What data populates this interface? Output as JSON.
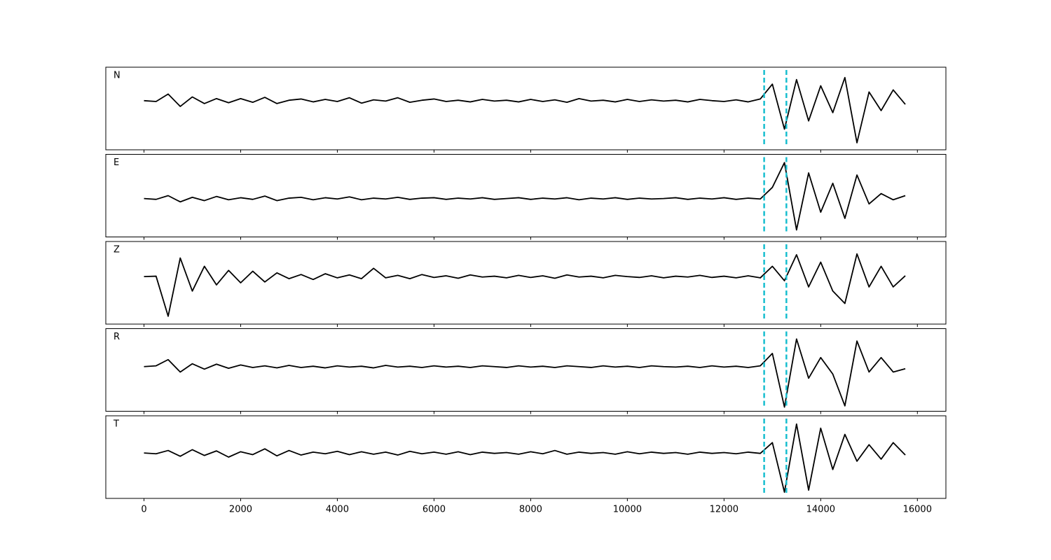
{
  "chart_data": [
    {
      "type": "line",
      "title": "N",
      "color": "#000000",
      "x": [
        0,
        250,
        500,
        750,
        1000,
        1250,
        1500,
        1750,
        2000,
        2250,
        2500,
        2750,
        3000,
        3250,
        3500,
        3750,
        4000,
        4250,
        4500,
        4750,
        5000,
        5250,
        5500,
        5750,
        6000,
        6250,
        6500,
        6750,
        7000,
        7250,
        7500,
        7750,
        8000,
        8250,
        8500,
        8750,
        9000,
        9250,
        9500,
        9750,
        10000,
        10250,
        10500,
        10750,
        11000,
        11250,
        11500,
        11750,
        12000,
        12250,
        12500,
        12750,
        13000,
        13250,
        13500,
        13750,
        14000,
        14250,
        14500,
        14750,
        15000,
        15250,
        15500,
        15750
      ],
      "values": [
        0.19,
        0.17,
        0.35,
        0.05,
        0.28,
        0.12,
        0.24,
        0.14,
        0.24,
        0.15,
        0.27,
        0.12,
        0.2,
        0.23,
        0.16,
        0.22,
        0.17,
        0.26,
        0.13,
        0.21,
        0.18,
        0.26,
        0.15,
        0.2,
        0.23,
        0.17,
        0.2,
        0.16,
        0.22,
        0.18,
        0.2,
        0.16,
        0.22,
        0.17,
        0.21,
        0.15,
        0.24,
        0.18,
        0.2,
        0.16,
        0.22,
        0.17,
        0.21,
        0.18,
        0.2,
        0.16,
        0.22,
        0.19,
        0.17,
        0.21,
        0.16,
        0.23,
        0.59,
        -0.5,
        0.7,
        -0.3,
        0.55,
        -0.1,
        0.75,
        -0.83,
        0.4,
        -0.05,
        0.45,
        0.1
      ],
      "picks": [
        12830,
        13290
      ],
      "pick_color": "#17becf",
      "xlim": [
        -790,
        16590
      ],
      "ylim": [
        -1,
        1
      ],
      "xticks": [
        0,
        2000,
        4000,
        6000,
        8000,
        10000,
        12000,
        14000,
        16000
      ]
    },
    {
      "type": "line",
      "title": "E",
      "color": "#000000",
      "x": [
        0,
        250,
        500,
        750,
        1000,
        1250,
        1500,
        1750,
        2000,
        2250,
        2500,
        2750,
        3000,
        3250,
        3500,
        3750,
        4000,
        4250,
        4500,
        4750,
        5000,
        5250,
        5500,
        5750,
        6000,
        6250,
        6500,
        6750,
        7000,
        7250,
        7500,
        7750,
        8000,
        8250,
        8500,
        8750,
        9000,
        9250,
        9500,
        9750,
        10000,
        10250,
        10500,
        10750,
        11000,
        11250,
        11500,
        11750,
        12000,
        12250,
        12500,
        12750,
        13000,
        13250,
        13500,
        13750,
        14000,
        14250,
        14500,
        14750,
        15000,
        15250,
        15500,
        15750
      ],
      "values": [
        -0.07,
        -0.09,
        0,
        -0.15,
        -0.04,
        -0.12,
        -0.02,
        -0.1,
        -0.05,
        -0.09,
        -0.01,
        -0.12,
        -0.06,
        -0.04,
        -0.1,
        -0.05,
        -0.08,
        -0.03,
        -0.1,
        -0.06,
        -0.08,
        -0.04,
        -0.09,
        -0.06,
        -0.05,
        -0.09,
        -0.06,
        -0.08,
        -0.05,
        -0.09,
        -0.07,
        -0.05,
        -0.09,
        -0.06,
        -0.08,
        -0.05,
        -0.1,
        -0.06,
        -0.08,
        -0.05,
        -0.09,
        -0.06,
        -0.08,
        -0.07,
        -0.05,
        -0.09,
        -0.06,
        -0.08,
        -0.05,
        -0.09,
        -0.06,
        -0.08,
        0.2,
        0.8,
        -0.83,
        0.55,
        -0.4,
        0.3,
        -0.55,
        0.5,
        -0.2,
        0.05,
        -0.1,
        0
      ],
      "picks": [
        12830,
        13290
      ],
      "pick_color": "#17becf",
      "xlim": [
        -790,
        16590
      ],
      "ylim": [
        -1,
        1
      ],
      "xticks": [
        0,
        2000,
        4000,
        6000,
        8000,
        10000,
        12000,
        14000,
        16000
      ]
    },
    {
      "type": "line",
      "title": "Z",
      "color": "#000000",
      "x": [
        0,
        250,
        500,
        750,
        1000,
        1250,
        1500,
        1750,
        2000,
        2250,
        2500,
        2750,
        3000,
        3250,
        3500,
        3750,
        4000,
        4250,
        4500,
        4750,
        5000,
        5250,
        5500,
        5750,
        6000,
        6250,
        6500,
        6750,
        7000,
        7250,
        7500,
        7750,
        8000,
        8250,
        8500,
        8750,
        9000,
        9250,
        9500,
        9750,
        10000,
        10250,
        10500,
        10750,
        11000,
        11250,
        11500,
        11750,
        12000,
        12250,
        12500,
        12750,
        13000,
        13250,
        13500,
        13750,
        14000,
        14250,
        14500,
        14750,
        15000,
        15250,
        15500,
        15750
      ],
      "values": [
        0.15,
        0.16,
        -0.81,
        0.6,
        -0.2,
        0.4,
        -0.05,
        0.3,
        0,
        0.28,
        0.02,
        0.24,
        0.1,
        0.2,
        0.08,
        0.22,
        0.12,
        0.19,
        0.1,
        0.35,
        0.12,
        0.18,
        0.1,
        0.2,
        0.13,
        0.17,
        0.11,
        0.19,
        0.14,
        0.16,
        0.12,
        0.18,
        0.13,
        0.17,
        0.11,
        0.19,
        0.14,
        0.16,
        0.12,
        0.18,
        0.15,
        0.13,
        0.17,
        0.12,
        0.16,
        0.14,
        0.18,
        0.13,
        0.16,
        0.12,
        0.17,
        0.12,
        0.4,
        0.05,
        0.68,
        -0.1,
        0.5,
        -0.2,
        -0.5,
        0.7,
        -0.1,
        0.4,
        -0.1,
        0.17
      ],
      "picks": [
        12830,
        13290
      ],
      "pick_color": "#17becf",
      "xlim": [
        -790,
        16590
      ],
      "ylim": [
        -1,
        1
      ],
      "xticks": [
        0,
        2000,
        4000,
        6000,
        8000,
        10000,
        12000,
        14000,
        16000
      ]
    },
    {
      "type": "line",
      "title": "R",
      "color": "#000000",
      "x": [
        0,
        250,
        500,
        750,
        1000,
        1250,
        1500,
        1750,
        2000,
        2250,
        2500,
        2750,
        3000,
        3250,
        3500,
        3750,
        4000,
        4250,
        4500,
        4750,
        5000,
        5250,
        5500,
        5750,
        6000,
        6250,
        6500,
        6750,
        7000,
        7250,
        7500,
        7750,
        8000,
        8250,
        8500,
        8750,
        9000,
        9250,
        9500,
        9750,
        10000,
        10250,
        10500,
        10750,
        11000,
        11250,
        11500,
        11750,
        12000,
        12250,
        12500,
        12750,
        13000,
        13250,
        13500,
        13750,
        14000,
        14250,
        14500,
        14750,
        15000,
        15250,
        15500,
        15750
      ],
      "values": [
        0.08,
        0.1,
        0.25,
        -0.05,
        0.15,
        0.02,
        0.14,
        0.04,
        0.12,
        0.06,
        0.1,
        0.05,
        0.11,
        0.06,
        0.09,
        0.05,
        0.1,
        0.07,
        0.09,
        0.05,
        0.11,
        0.07,
        0.09,
        0.06,
        0.1,
        0.07,
        0.09,
        0.06,
        0.1,
        0.08,
        0.06,
        0.1,
        0.07,
        0.09,
        0.06,
        0.1,
        0.08,
        0.06,
        0.1,
        0.07,
        0.09,
        0.06,
        0.1,
        0.08,
        0.07,
        0.09,
        0.06,
        0.1,
        0.07,
        0.09,
        0.06,
        0.1,
        0.4,
        -0.9,
        0.75,
        -0.2,
        0.3,
        -0.1,
        -0.87,
        0.7,
        -0.05,
        0.3,
        -0.05,
        0.03
      ],
      "picks": [
        12830,
        13290
      ],
      "pick_color": "#17becf",
      "xlim": [
        -790,
        16590
      ],
      "ylim": [
        -1,
        1
      ],
      "xticks": [
        0,
        2000,
        4000,
        6000,
        8000,
        10000,
        12000,
        14000,
        16000
      ]
    },
    {
      "type": "line",
      "title": "T",
      "color": "#000000",
      "x": [
        0,
        250,
        500,
        750,
        1000,
        1250,
        1500,
        1750,
        2000,
        2250,
        2500,
        2750,
        3000,
        3250,
        3500,
        3750,
        4000,
        4250,
        4500,
        4750,
        5000,
        5250,
        5500,
        5750,
        6000,
        6250,
        6500,
        6750,
        7000,
        7250,
        7500,
        7750,
        8000,
        8250,
        8500,
        8750,
        9000,
        9250,
        9500,
        9750,
        10000,
        10250,
        10500,
        10750,
        11000,
        11250,
        11500,
        11750,
        12000,
        12250,
        12500,
        12750,
        13000,
        13250,
        13500,
        13750,
        14000,
        14250,
        14500,
        14750,
        15000,
        15250,
        15500,
        15750
      ],
      "values": [
        0.1,
        0.08,
        0.16,
        0.02,
        0.18,
        0.04,
        0.15,
        0.0,
        0.13,
        0.06,
        0.2,
        0.03,
        0.16,
        0.05,
        0.12,
        0.08,
        0.14,
        0.06,
        0.13,
        0.07,
        0.12,
        0.05,
        0.14,
        0.08,
        0.12,
        0.07,
        0.13,
        0.06,
        0.12,
        0.09,
        0.11,
        0.07,
        0.13,
        0.08,
        0.16,
        0.07,
        0.12,
        0.09,
        0.11,
        0.07,
        0.13,
        0.08,
        0.12,
        0.09,
        0.11,
        0.07,
        0.12,
        0.09,
        0.11,
        0.08,
        0.12,
        0.09,
        0.35,
        -0.85,
        0.8,
        -0.8,
        0.7,
        -0.3,
        0.55,
        -0.1,
        0.3,
        -0.05,
        0.35,
        0.05
      ],
      "picks": [
        12830,
        13290
      ],
      "pick_color": "#17becf",
      "xlim": [
        -790,
        16590
      ],
      "ylim": [
        -1,
        1
      ],
      "xticks": [
        0,
        2000,
        4000,
        6000,
        8000,
        10000,
        12000,
        14000,
        16000
      ]
    }
  ]
}
